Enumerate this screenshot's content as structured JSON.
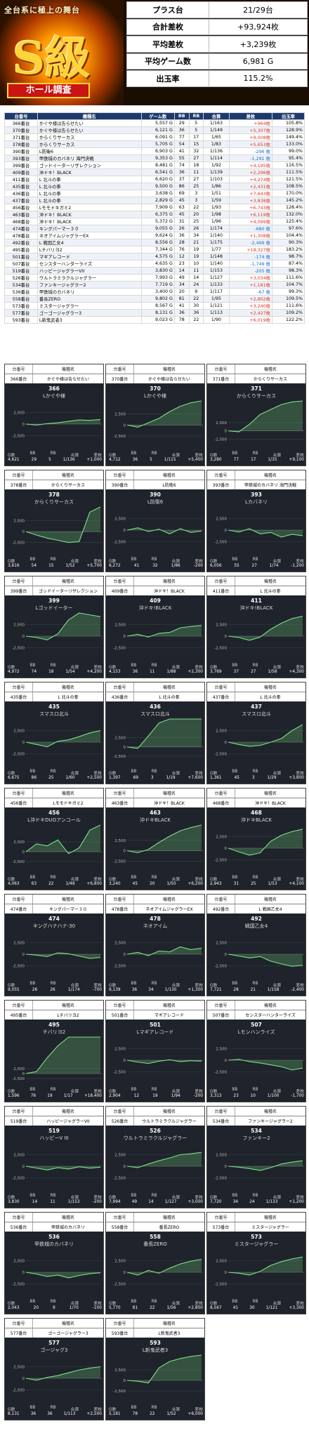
{
  "header": {
    "banner_sub": "全台系に極上の舞台",
    "banner_big": "S級",
    "banner_tag": "ホール調査"
  },
  "summary": [
    {
      "label": "プラス台",
      "value": "21/29台"
    },
    {
      "label": "合計差枚",
      "value": "+93,924枚"
    },
    {
      "label": "平均差枚",
      "value": "+3,239枚"
    },
    {
      "label": "平均ゲーム数",
      "value": "6,981 G"
    },
    {
      "label": "出玉率",
      "value": "115.2%"
    }
  ],
  "table": {
    "headers": [
      "台番号",
      "機種名",
      "ゲーム数",
      "BB",
      "RB",
      "合算",
      "差枚",
      "出玉率"
    ],
    "rows": [
      [
        "366番台",
        "かぐや様は告らせたい",
        "5,557 G",
        "29",
        "5",
        "1/163",
        "+964枚",
        "105.8%"
      ],
      [
        "370番台",
        "かぐや様は告らせたい",
        "6,121 G",
        "36",
        "5",
        "1/149",
        "+5,307枚",
        "128.9%"
      ],
      [
        "371番台",
        "からくりサーカス",
        "6,091 G",
        "77",
        "17",
        "1/65",
        "+9,008枚",
        "149.4%"
      ],
      [
        "378番台",
        "からくりサーカス",
        "5,705 G",
        "54",
        "15",
        "1/83",
        "+5,653枚",
        "133.0%"
      ],
      [
        "390番台",
        "L防衛6",
        "6,903 G",
        "41",
        "32",
        "1/136",
        "-296 枚",
        "99.0%"
      ],
      [
        "393番台",
        "甲鉄城のカバネリ 海門決戦",
        "9,353 G",
        "55",
        "27",
        "1/114",
        "-1,291 枚",
        "95.4%"
      ],
      [
        "399番台",
        "ゴッドイーターリザレクション",
        "8,481 G",
        "74",
        "18",
        "1/92",
        "+4,195枚",
        "116.5%"
      ],
      [
        "409番台",
        "沖ドキ！BLACK",
        "6,541 G",
        "36",
        "11",
        "1/139",
        "+2,296枚",
        "111.5%"
      ],
      [
        "411番台",
        "L 北斗の拳",
        "6,620 G",
        "37",
        "27",
        "1/103",
        "+4,274枚",
        "121.5%"
      ],
      [
        "435番台",
        "L 北斗の拳",
        "9,500 G",
        "86",
        "25",
        "1/86",
        "+2,431枚",
        "108.5%"
      ],
      [
        "436番台",
        "L 北斗の拳",
        "3,638 G",
        "69",
        "3",
        "1/51",
        "+7,643枚",
        "170.0%"
      ],
      [
        "437番台",
        "L 北斗の拳",
        "2,829 G",
        "45",
        "3",
        "1/59",
        "+3,838枚",
        "145.2%"
      ],
      [
        "456番台",
        "Lモモドキガミ2",
        "7,909 G",
        "63",
        "22",
        "1/93",
        "+6,743枚",
        "128.4%"
      ],
      [
        "463番台",
        "沖ドキ！BLACK",
        "6,375 G",
        "45",
        "20",
        "1/98",
        "+6,119枚",
        "132.0%"
      ],
      [
        "468番台",
        "沖ドキ！BLACK",
        "5,372 G",
        "31",
        "25",
        "1/96",
        "+4,099枚",
        "125.4%"
      ],
      [
        "474番台",
        "キングパーマー３０",
        "9,055 G",
        "26",
        "26",
        "1/174",
        "-680 枚",
        "97.6%"
      ],
      [
        "478番台",
        "ネオアイムジャグラーEX",
        "9,624 G",
        "36",
        "34",
        "1/140",
        "+1,308枚",
        "104.4%"
      ],
      [
        "492番台",
        "L 戦国乙女4",
        "8,556 G",
        "28",
        "21",
        "1/175",
        "-2,499 枚",
        "90.3%"
      ],
      [
        "495番台",
        "Lチバリヨ2",
        "7,344 G",
        "76",
        "19",
        "1/77",
        "+18,327枚",
        "183.2%"
      ],
      [
        "501番台",
        "マギアレコード",
        "4,575 G",
        "12",
        "19",
        "1/148",
        "-174 枚",
        "98.7%"
      ],
      [
        "507番台",
        "センスターハンターライズ",
        "4,635 G",
        "23",
        "10",
        "1/140",
        "-1,749 枚",
        "87.4%"
      ],
      [
        "519番台",
        "ハッピージャグラーVII",
        "3,830 G",
        "14",
        "11",
        "1/153",
        "-205 枚",
        "98.3%"
      ],
      [
        "526番台",
        "ウルトラミラクルジャグラー",
        "7,993 G",
        "49",
        "14",
        "1/127",
        "+3,034枚",
        "111.6%"
      ],
      [
        "534番台",
        "ファンキージャグラー2",
        "7,719 G",
        "34",
        "24",
        "1/133",
        "+1,181枚",
        "104.7%"
      ],
      [
        "536番台",
        "甲鉄城のカバネリ",
        "3,400 G",
        "20",
        "9",
        "1/117",
        "-67 枚",
        "99.3%"
      ],
      [
        "558番台",
        "番長ZERO",
        "9,802 G",
        "81",
        "22",
        "1/95",
        "+2,802枚",
        "109.5%"
      ],
      [
        "573番台",
        "ミスタージャグラー",
        "8,567 G",
        "41",
        "30",
        "1/121",
        "+3,240枚",
        "111.6%"
      ],
      [
        "577番台",
        "ゴーゴージャグラー3",
        "8,131 G",
        "36",
        "36",
        "1/113",
        "+2,427枚",
        "109.2%"
      ],
      [
        "593番台",
        "L新鬼武者3",
        "9,023 G",
        "78",
        "22",
        "1/90",
        "+6,019枚",
        "122.2%"
      ]
    ]
  },
  "cards": [
    {
      "no": "366番台",
      "model": "かぐや様は告らせたい",
      "num": "366",
      "name": "Lかぐや様",
      "g": "4,621",
      "bb": "29",
      "rb": "5",
      "gs": "1/136",
      "diff": "+1,000",
      "shape": [
        0,
        -200,
        100,
        300,
        600,
        900,
        800,
        1000
      ]
    },
    {
      "no": "370番台",
      "model": "かぐや様は告らせたい",
      "num": "370",
      "name": "Lかぐや様",
      "g": "4,712",
      "bb": "36",
      "rb": "5",
      "gs": "1/115",
      "diff": "+5,400",
      "shape": [
        0,
        -500,
        500,
        1500,
        3000,
        4200,
        5000,
        5400
      ]
    },
    {
      "no": "371番台",
      "model": "からくりサーカス",
      "num": "371",
      "name": "からくりサーカス",
      "g": "3,280",
      "bb": "77",
      "rb": "17",
      "gs": "1/35",
      "diff": "+9,100",
      "shape": [
        0,
        -300,
        2000,
        5000,
        6500,
        8000,
        8800,
        9100
      ]
    },
    {
      "no": "378番台",
      "model": "からくりサーカス",
      "num": "378",
      "name": "からくりサーカス",
      "g": "3,616",
      "bb": "54",
      "rb": "15",
      "gs": "1/52",
      "diff": "+5,700",
      "shape": [
        0,
        -800,
        -1500,
        -2000,
        -2500,
        -2300,
        4500,
        5700
      ]
    },
    {
      "no": "390番台",
      "model": "L防衛6",
      "num": "390",
      "name": "L防衛6",
      "g": "6,272",
      "bb": "41",
      "rb": "32",
      "gs": "1/86",
      "diff": "-200",
      "shape": [
        0,
        500,
        -300,
        200,
        -800,
        300,
        -500,
        -200
      ]
    },
    {
      "no": "393番台",
      "model": "甲鉄城のカバネリ 海門決戦",
      "num": "393",
      "name": "Lカバネリ",
      "g": "6,056",
      "bb": "55",
      "rb": "27",
      "gs": "1/74",
      "diff": "-1,200",
      "shape": [
        0,
        -400,
        300,
        -800,
        -500,
        -1500,
        -900,
        -1200
      ]
    },
    {
      "no": "399番台",
      "model": "ゴッドイーターリザレクション",
      "num": "399",
      "name": "Lゴッドイーター",
      "g": "4,972",
      "bb": "74",
      "rb": "18",
      "gs": "1/54",
      "diff": "+4,200",
      "shape": [
        0,
        -300,
        -800,
        500,
        3500,
        5000,
        4600,
        4200
      ]
    },
    {
      "no": "409番台",
      "model": "沖ドキ！BLACK",
      "num": "409",
      "name": "沖ドキ!BLACK",
      "g": "4,153",
      "bb": "36",
      "rb": "11",
      "gs": "1/88",
      "diff": "+2,300",
      "shape": [
        0,
        400,
        -200,
        600,
        800,
        1800,
        2100,
        2300
      ]
    },
    {
      "no": "411番台",
      "model": "L 北斗の拳",
      "num": "411",
      "name": "沖ドキ!BLACK",
      "g": "3,769",
      "bb": "37",
      "rb": "27",
      "gs": "1/58",
      "diff": "+4,300",
      "shape": [
        0,
        -300,
        -900,
        -200,
        1500,
        2800,
        3800,
        4300
      ]
    },
    {
      "no": "435番台",
      "model": "L 北斗の拳",
      "num": "435",
      "name": "スマスロ北斗",
      "g": "6,675",
      "bb": "86",
      "rb": "25",
      "gs": "1/60",
      "diff": "+2,500",
      "shape": [
        0,
        -500,
        -1000,
        200,
        500,
        1200,
        2000,
        2500
      ]
    },
    {
      "no": "436番台",
      "model": "L 北斗の拳",
      "num": "436",
      "name": "スマスロ北斗",
      "g": "1,397",
      "bb": "69",
      "rb": "3",
      "gs": "1/19",
      "diff": "+7,600",
      "shape": [
        0,
        -400,
        3000,
        6500,
        7600,
        7600,
        7600,
        7600
      ]
    },
    {
      "no": "437番台",
      "model": "L 北斗の拳",
      "num": "437",
      "name": "スマスロ北斗",
      "g": "1,361",
      "bb": "45",
      "rb": "3",
      "gs": "1/29",
      "diff": "+3,800",
      "shape": [
        0,
        -500,
        -900,
        -700,
        0,
        800,
        2500,
        3800
      ]
    },
    {
      "no": "456番台",
      "model": "Lモモドキガミ2",
      "num": "456",
      "name": "L沖ドキDUOアンコール",
      "g": "4,063",
      "bb": "63",
      "rb": "22",
      "gs": "1/48",
      "diff": "+6,800",
      "shape": [
        0,
        2000,
        1500,
        3000,
        -500,
        1000,
        5500,
        6800
      ]
    },
    {
      "no": "463番台",
      "model": "沖ドキ！BLACK",
      "num": "463",
      "name": "沖ドキBLACK",
      "g": "3,240",
      "bb": "45",
      "rb": "20",
      "gs": "1/50",
      "diff": "+6,200",
      "shape": [
        0,
        -500,
        300,
        2000,
        3500,
        4800,
        5600,
        6200
      ]
    },
    {
      "no": "468番台",
      "model": "沖ドキ！BLACK",
      "num": "468",
      "name": "沖ドキBLACK",
      "g": "2,943",
      "bb": "31",
      "rb": "25",
      "gs": "1/53",
      "diff": "+4,100",
      "shape": [
        0,
        -800,
        -1500,
        -1000,
        1500,
        2800,
        3600,
        4100
      ]
    },
    {
      "no": "474番台",
      "model": "キングパーマー３０",
      "num": "474",
      "name": "キングハナハナ-30",
      "g": "9,055",
      "bb": "26",
      "rb": "26",
      "gs": "1/174",
      "diff": "-700",
      "shape": [
        0,
        -200,
        -500,
        300,
        100,
        -400,
        -900,
        -700
      ]
    },
    {
      "no": "478番台",
      "model": "ネオアイムジャグラーEX",
      "num": "478",
      "name": "ネオアイム",
      "g": "9,139",
      "bb": "36",
      "rb": "34",
      "gs": "1/130",
      "diff": "+1,300",
      "shape": [
        0,
        400,
        -300,
        700,
        500,
        1600,
        1000,
        1300
      ]
    },
    {
      "no": "492番台",
      "model": "L 戦国乙女4",
      "num": "492",
      "name": "戦国乙女4",
      "g": "7,721",
      "bb": "28",
      "rb": "21",
      "gs": "1/158",
      "diff": "-2,400",
      "shape": [
        0,
        -400,
        -800,
        -500,
        -1500,
        -2100,
        -2600,
        -2400
      ]
    },
    {
      "no": "495番台",
      "model": "Lチバリヨ2",
      "num": "495",
      "name": "チバリヨ2",
      "g": "1,596",
      "bb": "76",
      "rb": "19",
      "gs": "1/17",
      "diff": "+18,400",
      "shape": [
        0,
        1000,
        8000,
        14000,
        18400,
        18400,
        18400,
        18400
      ]
    },
    {
      "no": "501番台",
      "model": "マギアレコード",
      "num": "501",
      "name": "Lマギアレコード",
      "g": "2,904",
      "bb": "12",
      "rb": "19",
      "gs": "1/94",
      "diff": "-200",
      "shape": [
        0,
        -400,
        -700,
        -200,
        100,
        -300,
        -100,
        -200
      ]
    },
    {
      "no": "507番台",
      "model": "センスターハンターライズ",
      "num": "507",
      "name": "Lモンハンライズ",
      "g": "3,313",
      "bb": "23",
      "rb": "10",
      "gs": "1/100",
      "diff": "-1,700",
      "shape": [
        0,
        200,
        -300,
        -600,
        -1000,
        -1400,
        -2100,
        -1700
      ]
    },
    {
      "no": "519番台",
      "model": "ハッピージャグラーVII",
      "num": "519",
      "name": "ハッピーV III",
      "g": "3,830",
      "bb": "14",
      "rb": "11",
      "gs": "1/153",
      "diff": "-200",
      "shape": [
        0,
        -400,
        -800,
        -300,
        -600,
        -100,
        -400,
        -200
      ]
    },
    {
      "no": "526番台",
      "model": "ウルトラミラクルジャグラー",
      "num": "526",
      "name": "ウルトラミラクルジャグラー",
      "g": "7,994",
      "bb": "49",
      "rb": "14",
      "gs": "1/127",
      "diff": "+3,000",
      "shape": [
        0,
        -300,
        500,
        1200,
        1800,
        2500,
        2700,
        3000
      ]
    },
    {
      "no": "534番台",
      "model": "ファンキージャグラー2",
      "num": "534",
      "name": "ファンキー2",
      "g": "7,720",
      "bb": "34",
      "rb": "24",
      "gs": "1/133",
      "diff": "+1,200",
      "shape": [
        0,
        -200,
        -500,
        -900,
        -300,
        500,
        900,
        1200
      ]
    },
    {
      "no": "536番台",
      "model": "甲鉄城のカバネリ",
      "num": "536",
      "name": "甲鉄城のカバネリ",
      "g": "2,043",
      "bb": "20",
      "rb": "9",
      "gs": "1/70",
      "diff": "-100",
      "shape": [
        0,
        -400,
        -900,
        -600,
        -1200,
        -700,
        -300,
        -100
      ]
    },
    {
      "no": "558番台",
      "model": "番長ZERO",
      "num": "558",
      "name": "番長ZERO",
      "g": "5,770",
      "bb": "81",
      "rb": "22",
      "gs": "1/56",
      "diff": "+2,800",
      "shape": [
        0,
        -600,
        400,
        -200,
        900,
        1800,
        2400,
        2800
      ]
    },
    {
      "no": "573番台",
      "model": "ミスタージャグラー",
      "num": "573",
      "name": "ミスタージャグラー",
      "g": "8,567",
      "bb": "41",
      "rb": "30",
      "gs": "1/121",
      "diff": "+3,300",
      "shape": [
        0,
        -200,
        -600,
        200,
        1500,
        2300,
        2900,
        3300
      ]
    },
    {
      "no": "577番台",
      "model": "ゴーゴージャグラー3",
      "num": "577",
      "name": "ゴージャグ3",
      "g": "8,131",
      "bb": "36",
      "rb": "36",
      "gs": "1/113",
      "diff": "+2,500",
      "shape": [
        0,
        -400,
        200,
        600,
        1200,
        1800,
        2200,
        2500
      ]
    },
    {
      "no": "593番台",
      "model": "L新鬼武者3",
      "num": "593",
      "name": "L新鬼武者3",
      "g": "5,181",
      "bb": "78",
      "rb": "22",
      "gs": "1/52",
      "diff": "+6,000",
      "shape": [
        0,
        -200,
        -600,
        3000,
        4500,
        5200,
        5700,
        6000
      ]
    }
  ],
  "card_labels": {
    "col1": "台番号",
    "col2": "機種名",
    "g": "G数",
    "bb": "BB",
    "rb": "RB",
    "gs": "合算",
    "diff": "差枚",
    "tick_pos": "2,500",
    "tick_zero": "0",
    "tick_neg": "-2,500"
  }
}
